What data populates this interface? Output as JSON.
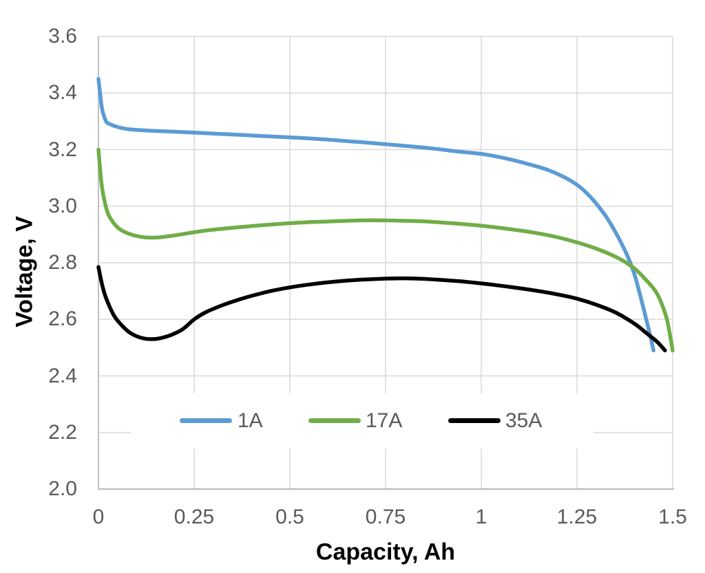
{
  "chart_data": {
    "type": "line",
    "title": "",
    "xlabel": "Capacity, Ah",
    "ylabel": "Voltage, V",
    "xlim": [
      0,
      1.5
    ],
    "ylim": [
      2.0,
      3.6
    ],
    "grid": true,
    "legend_position": "inside-bottom-center",
    "xticks": [
      {
        "value": 0,
        "label": "0"
      },
      {
        "value": 0.25,
        "label": "0.25"
      },
      {
        "value": 0.5,
        "label": "0.5"
      },
      {
        "value": 0.75,
        "label": "0.75"
      },
      {
        "value": 1,
        "label": "1"
      },
      {
        "value": 1.25,
        "label": "1.25"
      },
      {
        "value": 1.5,
        "label": "1.5"
      }
    ],
    "yticks": [
      {
        "value": 3.6,
        "label": "3.6"
      },
      {
        "value": 3.4,
        "label": "3.4"
      },
      {
        "value": 3.2,
        "label": "3.2"
      },
      {
        "value": 3.0,
        "label": "3.0"
      },
      {
        "value": 2.8,
        "label": "2.8"
      },
      {
        "value": 2.6,
        "label": "2.6"
      },
      {
        "value": 2.4,
        "label": "2.4"
      },
      {
        "value": 2.2,
        "label": "2.2"
      },
      {
        "value": 2.0,
        "label": "2.0"
      }
    ],
    "colors": {
      "gridline": "#D9D9D9",
      "axis": "#BFBFBF",
      "tick_text": "#595959",
      "title_text": "#000000",
      "legend_text": "#595959",
      "background": "#FFFFFF"
    },
    "series": [
      {
        "name": "1A",
        "color": "#5B9BD5",
        "points": [
          [
            0,
            3.45
          ],
          [
            0.005,
            3.39
          ],
          [
            0.01,
            3.34
          ],
          [
            0.02,
            3.3
          ],
          [
            0.03,
            3.29
          ],
          [
            0.05,
            3.28
          ],
          [
            0.08,
            3.272
          ],
          [
            0.12,
            3.268
          ],
          [
            0.17,
            3.265
          ],
          [
            0.22,
            3.262
          ],
          [
            0.28,
            3.258
          ],
          [
            0.34,
            3.254
          ],
          [
            0.4,
            3.25
          ],
          [
            0.46,
            3.246
          ],
          [
            0.52,
            3.242
          ],
          [
            0.58,
            3.237
          ],
          [
            0.64,
            3.231
          ],
          [
            0.7,
            3.225
          ],
          [
            0.76,
            3.218
          ],
          [
            0.82,
            3.211
          ],
          [
            0.88,
            3.203
          ],
          [
            0.94,
            3.193
          ],
          [
            1.0,
            3.185
          ],
          [
            1.06,
            3.17
          ],
          [
            1.12,
            3.15
          ],
          [
            1.18,
            3.125
          ],
          [
            1.24,
            3.085
          ],
          [
            1.28,
            3.04
          ],
          [
            1.32,
            2.975
          ],
          [
            1.35,
            2.91
          ],
          [
            1.38,
            2.83
          ],
          [
            1.4,
            2.76
          ],
          [
            1.42,
            2.66
          ],
          [
            1.44,
            2.55
          ],
          [
            1.45,
            2.49
          ]
        ]
      },
      {
        "name": "17A",
        "color": "#70AD47",
        "points": [
          [
            0,
            3.2
          ],
          [
            0.005,
            3.12
          ],
          [
            0.01,
            3.06
          ],
          [
            0.02,
            2.995
          ],
          [
            0.03,
            2.96
          ],
          [
            0.05,
            2.925
          ],
          [
            0.07,
            2.908
          ],
          [
            0.09,
            2.898
          ],
          [
            0.11,
            2.892
          ],
          [
            0.13,
            2.889
          ],
          [
            0.16,
            2.89
          ],
          [
            0.2,
            2.897
          ],
          [
            0.25,
            2.908
          ],
          [
            0.3,
            2.917
          ],
          [
            0.36,
            2.925
          ],
          [
            0.42,
            2.932
          ],
          [
            0.48,
            2.938
          ],
          [
            0.54,
            2.943
          ],
          [
            0.6,
            2.946
          ],
          [
            0.66,
            2.949
          ],
          [
            0.72,
            2.95
          ],
          [
            0.78,
            2.949
          ],
          [
            0.84,
            2.947
          ],
          [
            0.9,
            2.942
          ],
          [
            0.96,
            2.936
          ],
          [
            1.02,
            2.928
          ],
          [
            1.08,
            2.918
          ],
          [
            1.14,
            2.906
          ],
          [
            1.2,
            2.89
          ],
          [
            1.26,
            2.868
          ],
          [
            1.31,
            2.845
          ],
          [
            1.36,
            2.815
          ],
          [
            1.4,
            2.78
          ],
          [
            1.43,
            2.74
          ],
          [
            1.455,
            2.7
          ],
          [
            1.47,
            2.66
          ],
          [
            1.485,
            2.6
          ],
          [
            1.495,
            2.53
          ],
          [
            1.5,
            2.49
          ]
        ]
      },
      {
        "name": "35A",
        "color": "#000000",
        "points": [
          [
            0,
            2.785
          ],
          [
            0.01,
            2.72
          ],
          [
            0.02,
            2.675
          ],
          [
            0.04,
            2.615
          ],
          [
            0.06,
            2.58
          ],
          [
            0.08,
            2.555
          ],
          [
            0.1,
            2.54
          ],
          [
            0.12,
            2.532
          ],
          [
            0.14,
            2.53
          ],
          [
            0.16,
            2.533
          ],
          [
            0.19,
            2.545
          ],
          [
            0.22,
            2.565
          ],
          [
            0.25,
            2.6
          ],
          [
            0.28,
            2.625
          ],
          [
            0.32,
            2.648
          ],
          [
            0.36,
            2.667
          ],
          [
            0.4,
            2.683
          ],
          [
            0.45,
            2.7
          ],
          [
            0.5,
            2.713
          ],
          [
            0.55,
            2.723
          ],
          [
            0.6,
            2.731
          ],
          [
            0.65,
            2.737
          ],
          [
            0.7,
            2.741
          ],
          [
            0.75,
            2.744
          ],
          [
            0.8,
            2.745
          ],
          [
            0.85,
            2.743
          ],
          [
            0.9,
            2.739
          ],
          [
            0.95,
            2.734
          ],
          [
            1.0,
            2.727
          ],
          [
            1.05,
            2.719
          ],
          [
            1.1,
            2.71
          ],
          [
            1.15,
            2.7
          ],
          [
            1.2,
            2.688
          ],
          [
            1.25,
            2.673
          ],
          [
            1.3,
            2.652
          ],
          [
            1.35,
            2.625
          ],
          [
            1.4,
            2.585
          ],
          [
            1.43,
            2.553
          ],
          [
            1.46,
            2.52
          ],
          [
            1.48,
            2.49
          ]
        ]
      }
    ]
  }
}
